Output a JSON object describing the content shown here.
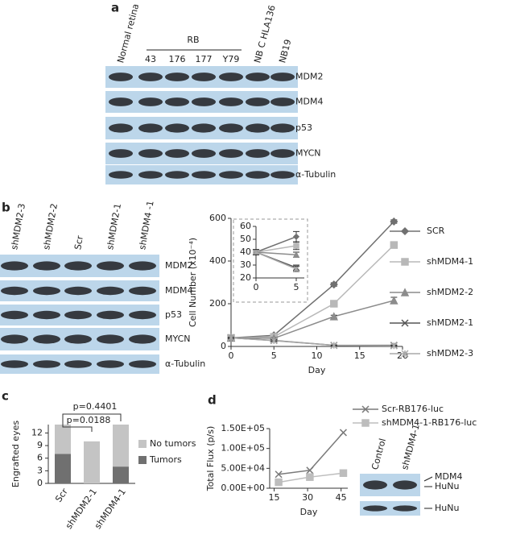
{
  "panel_labels": [
    "a",
    "b",
    "c",
    "d"
  ],
  "blot_a": {
    "top_labels": [
      "Normal retina",
      "RB",
      "NB C HLA136",
      "NB19"
    ],
    "rb_lanes": [
      "43",
      "176",
      "177",
      "Y79"
    ],
    "proteins": [
      "MDM2",
      "MDM4",
      "p53",
      "MYCN",
      "α-Tubulin"
    ]
  },
  "blot_b": {
    "lanes": [
      "shMDM2-3",
      "shMDM2-2",
      "Scr",
      "shMDM2-1",
      "shMDM4 -1"
    ],
    "proteins": [
      "MDM2",
      "MDM4",
      "p53",
      "MYCN",
      "α-Tubulin"
    ]
  },
  "blot_d": {
    "lanes": [
      "Control",
      "shMDM4-1"
    ],
    "proteins": [
      "MDM4",
      "HuNu",
      "HuNu"
    ]
  },
  "chart_data": [
    {
      "type": "line",
      "xlabel": "Day",
      "ylabel": "Cell Number (x10⁻⁴)",
      "x": [
        0,
        5,
        12,
        19
      ],
      "xlim": [
        0,
        20
      ],
      "xticks": [
        0,
        5,
        10,
        15,
        20
      ],
      "ylim": [
        0,
        600
      ],
      "yticks": [
        0,
        200,
        400,
        600
      ],
      "series": [
        {
          "name": "SCR",
          "color": "#707070",
          "marker": "diamond",
          "values": [
            40,
            52,
            290,
            585
          ],
          "errors": [
            3,
            6,
            8,
            8
          ]
        },
        {
          "name": "shMDM4-1",
          "color": "#b8b8b8",
          "marker": "square",
          "values": [
            40,
            45,
            200,
            475
          ],
          "errors": [
            3,
            4,
            8,
            12
          ]
        },
        {
          "name": "shMDM2-2",
          "color": "#8c8c8c",
          "marker": "triangle",
          "values": [
            40,
            38,
            140,
            215
          ],
          "errors": [
            3,
            3,
            6,
            15
          ]
        },
        {
          "name": "shMDM2-1",
          "color": "#555555",
          "marker": "x",
          "values": [
            40,
            28,
            5,
            5
          ],
          "errors": [
            3,
            3,
            2,
            2
          ]
        },
        {
          "name": "shMDM2-3",
          "color": "#a8a8a8",
          "marker": "star",
          "values": [
            40,
            27,
            5,
            3
          ],
          "errors": [
            3,
            3,
            2,
            2
          ]
        }
      ]
    },
    {
      "type": "line",
      "x": [
        0,
        5
      ],
      "xlim": [
        0,
        6
      ],
      "xticks": [
        0,
        5
      ],
      "ylim": [
        20,
        60
      ],
      "yticks": [
        20,
        30,
        40,
        50,
        60
      ],
      "series": [
        {
          "name": "SCR",
          "color": "#707070",
          "marker": "diamond",
          "values": [
            40,
            52
          ],
          "errors": [
            2,
            4
          ]
        },
        {
          "name": "shMDM4-1",
          "color": "#b8b8b8",
          "marker": "square",
          "values": [
            40,
            45
          ],
          "errors": [
            2,
            3
          ]
        },
        {
          "name": "shMDM2-2",
          "color": "#8c8c8c",
          "marker": "triangle",
          "values": [
            40,
            38
          ],
          "errors": [
            2,
            2
          ]
        },
        {
          "name": "shMDM2-1",
          "color": "#555555",
          "marker": "x",
          "values": [
            40,
            28
          ],
          "errors": [
            2,
            2
          ]
        },
        {
          "name": "shMDM2-3",
          "color": "#a8a8a8",
          "marker": "star",
          "values": [
            40,
            27
          ],
          "errors": [
            2,
            2
          ]
        }
      ]
    },
    {
      "type": "stacked-bar",
      "ylabel": "Engrafted eyes",
      "categories": [
        "Scr",
        "shMDM2-1",
        "shMDM4-1"
      ],
      "ylim": [
        0,
        14
      ],
      "yticks": [
        0,
        3,
        6,
        9,
        12
      ],
      "series": [
        {
          "name": "Tumors",
          "color": "#707070",
          "values": [
            7,
            0,
            4
          ]
        },
        {
          "name": "No tumors",
          "color": "#c4c4c4",
          "values": [
            7,
            10,
            10
          ]
        }
      ],
      "annotations": [
        "p=0.4401",
        "p=0.0188"
      ]
    },
    {
      "type": "line",
      "xlabel": "Day",
      "ylabel": "Total Flux (p/s)",
      "x": [
        17,
        31,
        46
      ],
      "xlim": [
        13,
        48
      ],
      "xticks": [
        15,
        30,
        45
      ],
      "ylim": [
        0,
        150000
      ],
      "yticks": [
        {
          "value": 0,
          "label": "0.00E+00"
        },
        {
          "value": 50000,
          "label": "5.00E+04"
        },
        {
          "value": 100000,
          "label": "1.00E+05"
        },
        {
          "value": 150000,
          "label": "1.50E+05"
        }
      ],
      "series": [
        {
          "name": "Scr-RB176-luc",
          "color": "#7a7a7a",
          "marker": "x",
          "values": [
            35000,
            45000,
            140000
          ]
        },
        {
          "name": "shMDM4-1-RB176-luc",
          "color": "#bdbdbd",
          "marker": "square",
          "values": [
            15000,
            28000,
            38000
          ]
        }
      ]
    }
  ]
}
